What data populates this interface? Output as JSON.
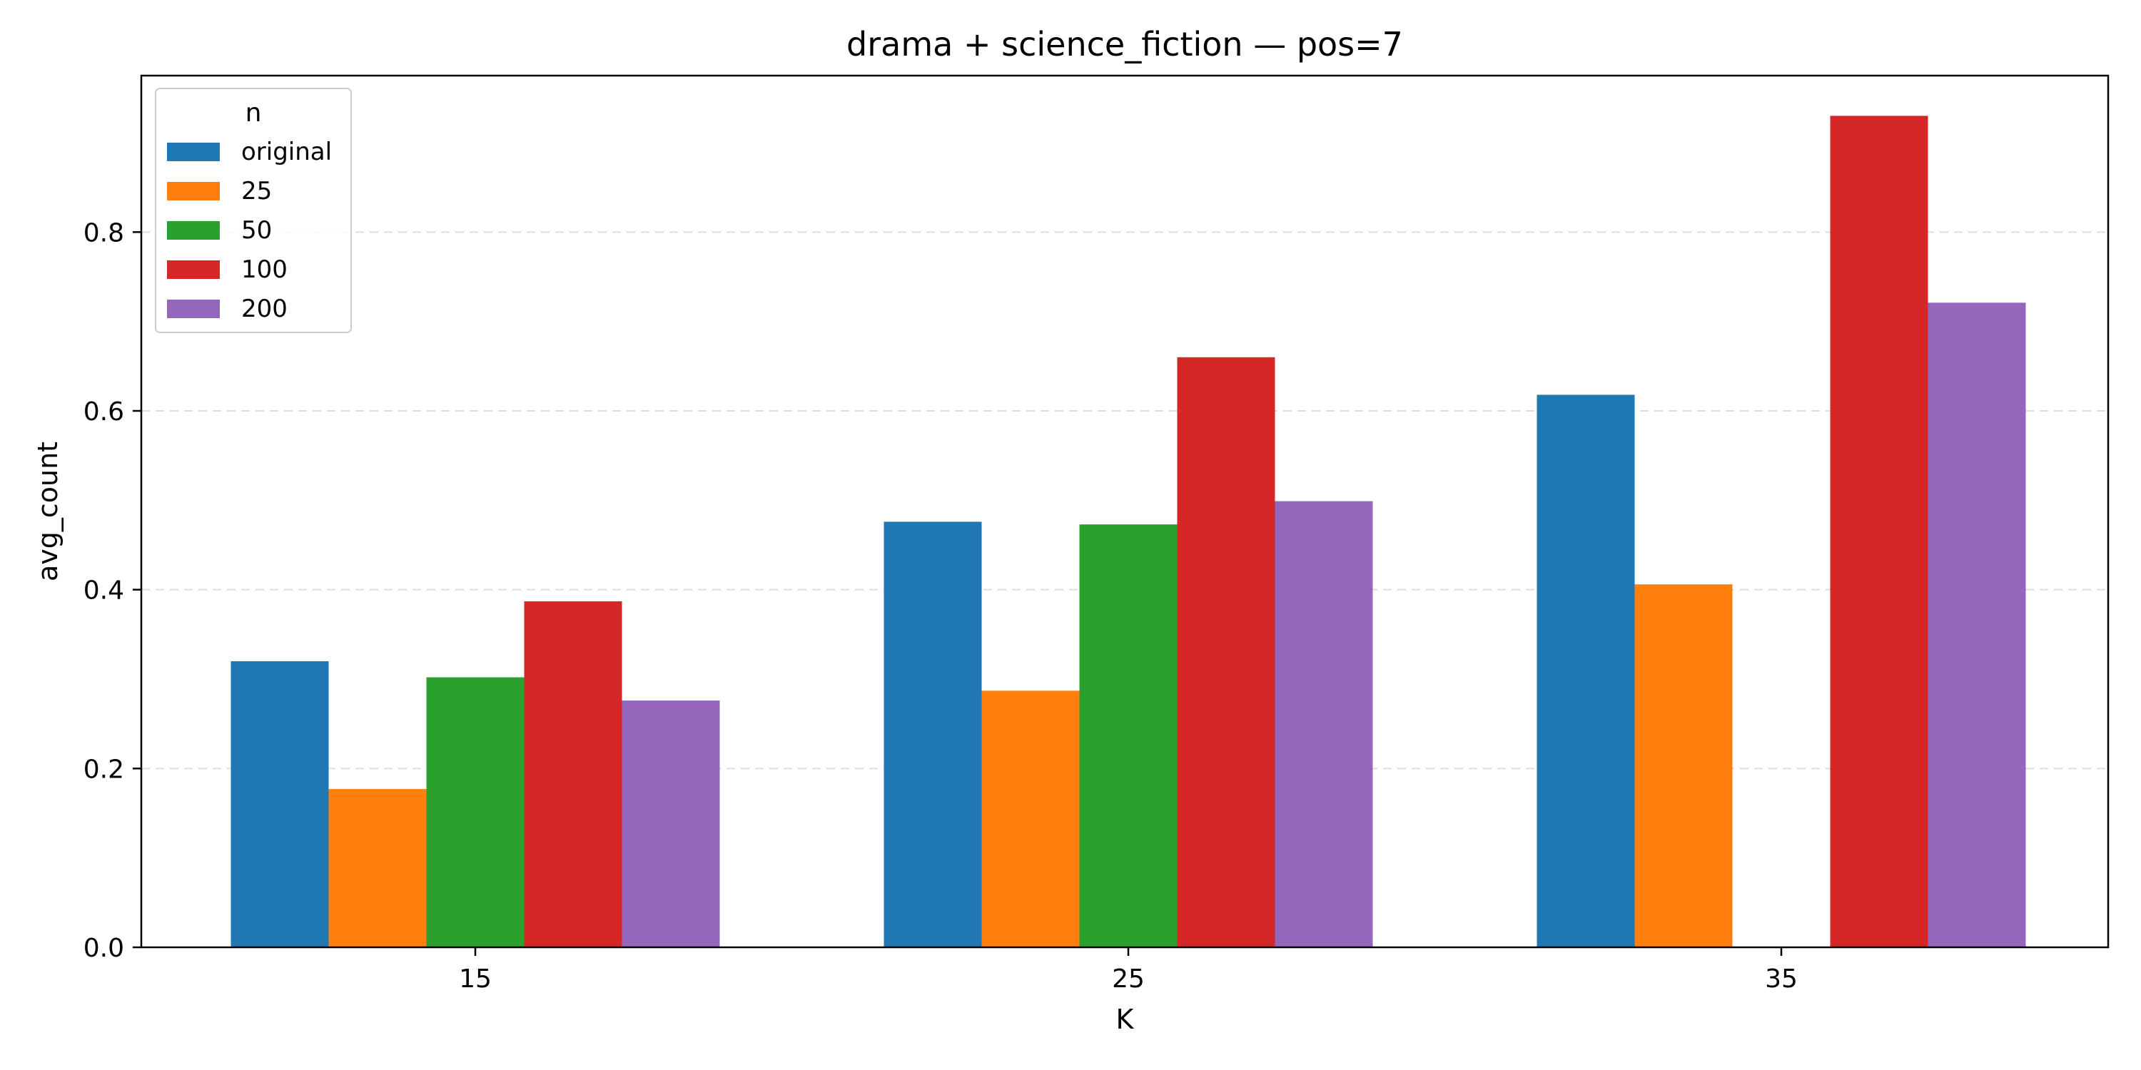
{
  "chart_data": {
    "type": "bar",
    "title": "drama + science_fiction — pos=7",
    "xlabel": "K",
    "ylabel": "avg_count",
    "categories": [
      "15",
      "25",
      "35"
    ],
    "ylim": [
      0,
      0.975
    ],
    "yticks": [
      0.0,
      0.2,
      0.4,
      0.6,
      0.8
    ],
    "grid": "y, dashed",
    "legend": {
      "title": "n",
      "placement": "top-left"
    },
    "series": [
      {
        "name": "original",
        "color": "#1f77b4",
        "values": [
          0.32,
          0.476,
          0.618
        ]
      },
      {
        "name": "25",
        "color": "#ff7f0e",
        "values": [
          0.177,
          0.287,
          0.406
        ]
      },
      {
        "name": "50",
        "color": "#2ca02c",
        "values": [
          0.302,
          0.473,
          null
        ]
      },
      {
        "name": "100",
        "color": "#d62728",
        "values": [
          0.387,
          0.66,
          0.93
        ]
      },
      {
        "name": "200",
        "color": "#9467bd",
        "values": [
          0.276,
          0.499,
          0.721
        ]
      }
    ]
  }
}
